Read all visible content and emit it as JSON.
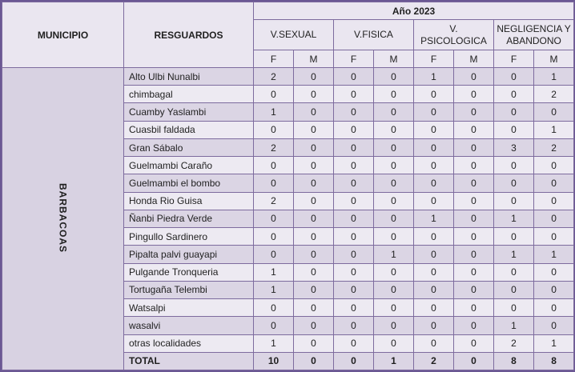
{
  "table": {
    "headers": {
      "municipio": "MUNICIPIO",
      "resguardos": "RESGUARDOS",
      "year": "Año 2023",
      "categories": [
        "V.SEXUAL",
        "V.FISICA",
        "V. PSICOLOGICA",
        "NEGLIGENCIA Y ABANDONO"
      ],
      "sub": [
        "F",
        "M"
      ]
    },
    "municipality": "BARBACOAS",
    "rows": [
      {
        "name": "Alto Ulbi Nunalbi",
        "values": [
          2,
          0,
          0,
          0,
          1,
          0,
          0,
          1
        ]
      },
      {
        "name": "chimbagal",
        "values": [
          0,
          0,
          0,
          0,
          0,
          0,
          0,
          2
        ]
      },
      {
        "name": "Cuamby Yaslambi",
        "values": [
          1,
          0,
          0,
          0,
          0,
          0,
          0,
          0
        ]
      },
      {
        "name": "Cuasbil faldada",
        "values": [
          0,
          0,
          0,
          0,
          0,
          0,
          0,
          1
        ]
      },
      {
        "name": "Gran Sábalo",
        "values": [
          2,
          0,
          0,
          0,
          0,
          0,
          3,
          2
        ]
      },
      {
        "name": "Guelmambi Caraño",
        "values": [
          0,
          0,
          0,
          0,
          0,
          0,
          0,
          0
        ]
      },
      {
        "name": "Guelmambi el bombo",
        "values": [
          0,
          0,
          0,
          0,
          0,
          0,
          0,
          0
        ]
      },
      {
        "name": "Honda Rio Guisa",
        "values": [
          2,
          0,
          0,
          0,
          0,
          0,
          0,
          0
        ]
      },
      {
        "name": "Ñanbi Piedra Verde",
        "values": [
          0,
          0,
          0,
          0,
          1,
          0,
          1,
          0
        ]
      },
      {
        "name": "Pingullo Sardinero",
        "values": [
          0,
          0,
          0,
          0,
          0,
          0,
          0,
          0
        ]
      },
      {
        "name": "Pipalta palvi guayapi",
        "values": [
          0,
          0,
          0,
          1,
          0,
          0,
          1,
          1
        ]
      },
      {
        "name": "Pulgande Tronqueria",
        "values": [
          1,
          0,
          0,
          0,
          0,
          0,
          0,
          0
        ]
      },
      {
        "name": "Tortugaña Telembi",
        "values": [
          1,
          0,
          0,
          0,
          0,
          0,
          0,
          0
        ]
      },
      {
        "name": "Watsalpi",
        "values": [
          0,
          0,
          0,
          0,
          0,
          0,
          0,
          0
        ]
      },
      {
        "name": "wasalvi",
        "values": [
          0,
          0,
          0,
          0,
          0,
          0,
          1,
          0
        ]
      },
      {
        "name": "otras localidades",
        "values": [
          1,
          0,
          0,
          0,
          0,
          0,
          2,
          1
        ]
      }
    ],
    "total_row": {
      "name": "TOTAL",
      "values": [
        10,
        0,
        0,
        1,
        2,
        0,
        8,
        8
      ]
    }
  },
  "colors": {
    "border_inner": "#7d6b9e",
    "border_outer": "#6b5894",
    "header_bg": "#eae6f0",
    "row_dark_bg": "#dbd5e4",
    "row_light_bg": "#edeaf2",
    "municipio_bg": "#d8d2e2",
    "text": "#1f1f1f"
  }
}
